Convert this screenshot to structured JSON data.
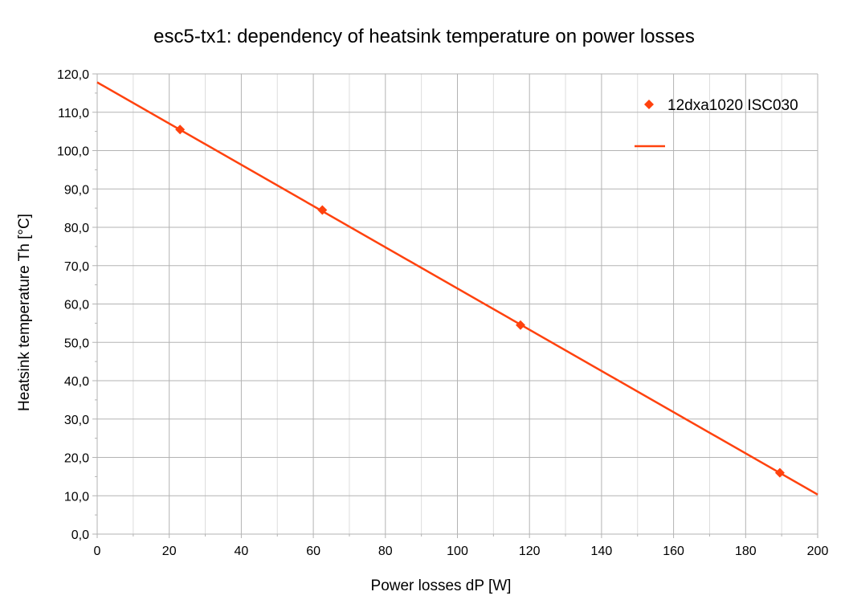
{
  "chart_data": {
    "type": "scatter",
    "title": "esc5-tx1: dependency of heatsink temperature on power losses",
    "xlabel": "Power losses dP [W]",
    "ylabel": "Heatsink temperature Th [°C]",
    "xlim": [
      0,
      200
    ],
    "ylim": [
      0,
      120
    ],
    "x_ticks": [
      0,
      20,
      40,
      60,
      80,
      100,
      120,
      140,
      160,
      180,
      200
    ],
    "x_tick_labels": [
      "0",
      "20",
      "40",
      "60",
      "80",
      "100",
      "120",
      "140",
      "160",
      "180",
      "200"
    ],
    "y_ticks": [
      0,
      10,
      20,
      30,
      40,
      50,
      60,
      70,
      80,
      90,
      100,
      110,
      120
    ],
    "y_tick_labels": [
      "0,0",
      "10,0",
      "20,0",
      "30,0",
      "40,0",
      "50,0",
      "60,0",
      "70,0",
      "80,0",
      "90,0",
      "100,0",
      "110,0",
      "120,0"
    ],
    "grid": true,
    "minor_grid_x": true,
    "legend_position": "top-right",
    "series": [
      {
        "name": "12dxa1020 ISC030",
        "marker": "diamond",
        "color": "#ff420e",
        "points": [
          {
            "x": 23,
            "y": 105.5
          },
          {
            "x": 62.5,
            "y": 84.5
          },
          {
            "x": 117.5,
            "y": 54.5
          },
          {
            "x": 189.5,
            "y": 16
          }
        ]
      }
    ],
    "trendline": {
      "type": "linear",
      "color": "#ff420e",
      "x": [
        0,
        200
      ],
      "y": [
        117.8,
        10.3
      ]
    }
  },
  "colors": {
    "series": "#ff420e",
    "grid": "#b3b3b3",
    "axis": "#b3b3b3"
  }
}
